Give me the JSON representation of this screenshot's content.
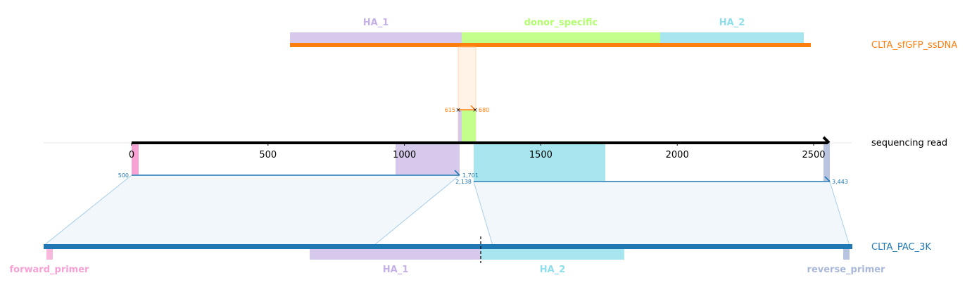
{
  "donor": {
    "name": "CLTA_sfGFP_ssDNA",
    "color": "#ff7f0e",
    "features": [
      {
        "name": "HA_1",
        "color": "#c5b0e8"
      },
      {
        "name": "donor_specific",
        "color": "#b2ff6e"
      },
      {
        "name": "HA_2",
        "color": "#8ddfeb"
      }
    ]
  },
  "read": {
    "name": "sequencing read",
    "color": "#000000",
    "ticks": [
      "0",
      "500",
      "1000",
      "1500",
      "2000",
      "2500"
    ],
    "tick_values": [
      0,
      500,
      1000,
      1500,
      2000,
      2500
    ]
  },
  "alignments": {
    "donor_alignment": {
      "start_label": "615",
      "end_label": "680",
      "color": "#ff7f0e"
    },
    "target_alignment_1": {
      "start_label": "500",
      "end_label": "1,701",
      "color": "#1f77b4"
    },
    "target_alignment_2": {
      "start_label": "2,138",
      "end_label": "3,443",
      "color": "#1f77b4"
    }
  },
  "target": {
    "name": "CLTA_PAC_3K",
    "color": "#1f77b4",
    "features": [
      {
        "name": "forward_primer",
        "color": "#f7a1d5"
      },
      {
        "name": "HA_1",
        "color": "#c5b0e8"
      },
      {
        "name": "HA_2",
        "color": "#8ddfeb"
      },
      {
        "name": "reverse_primer",
        "color": "#a9b8d8"
      }
    ]
  }
}
